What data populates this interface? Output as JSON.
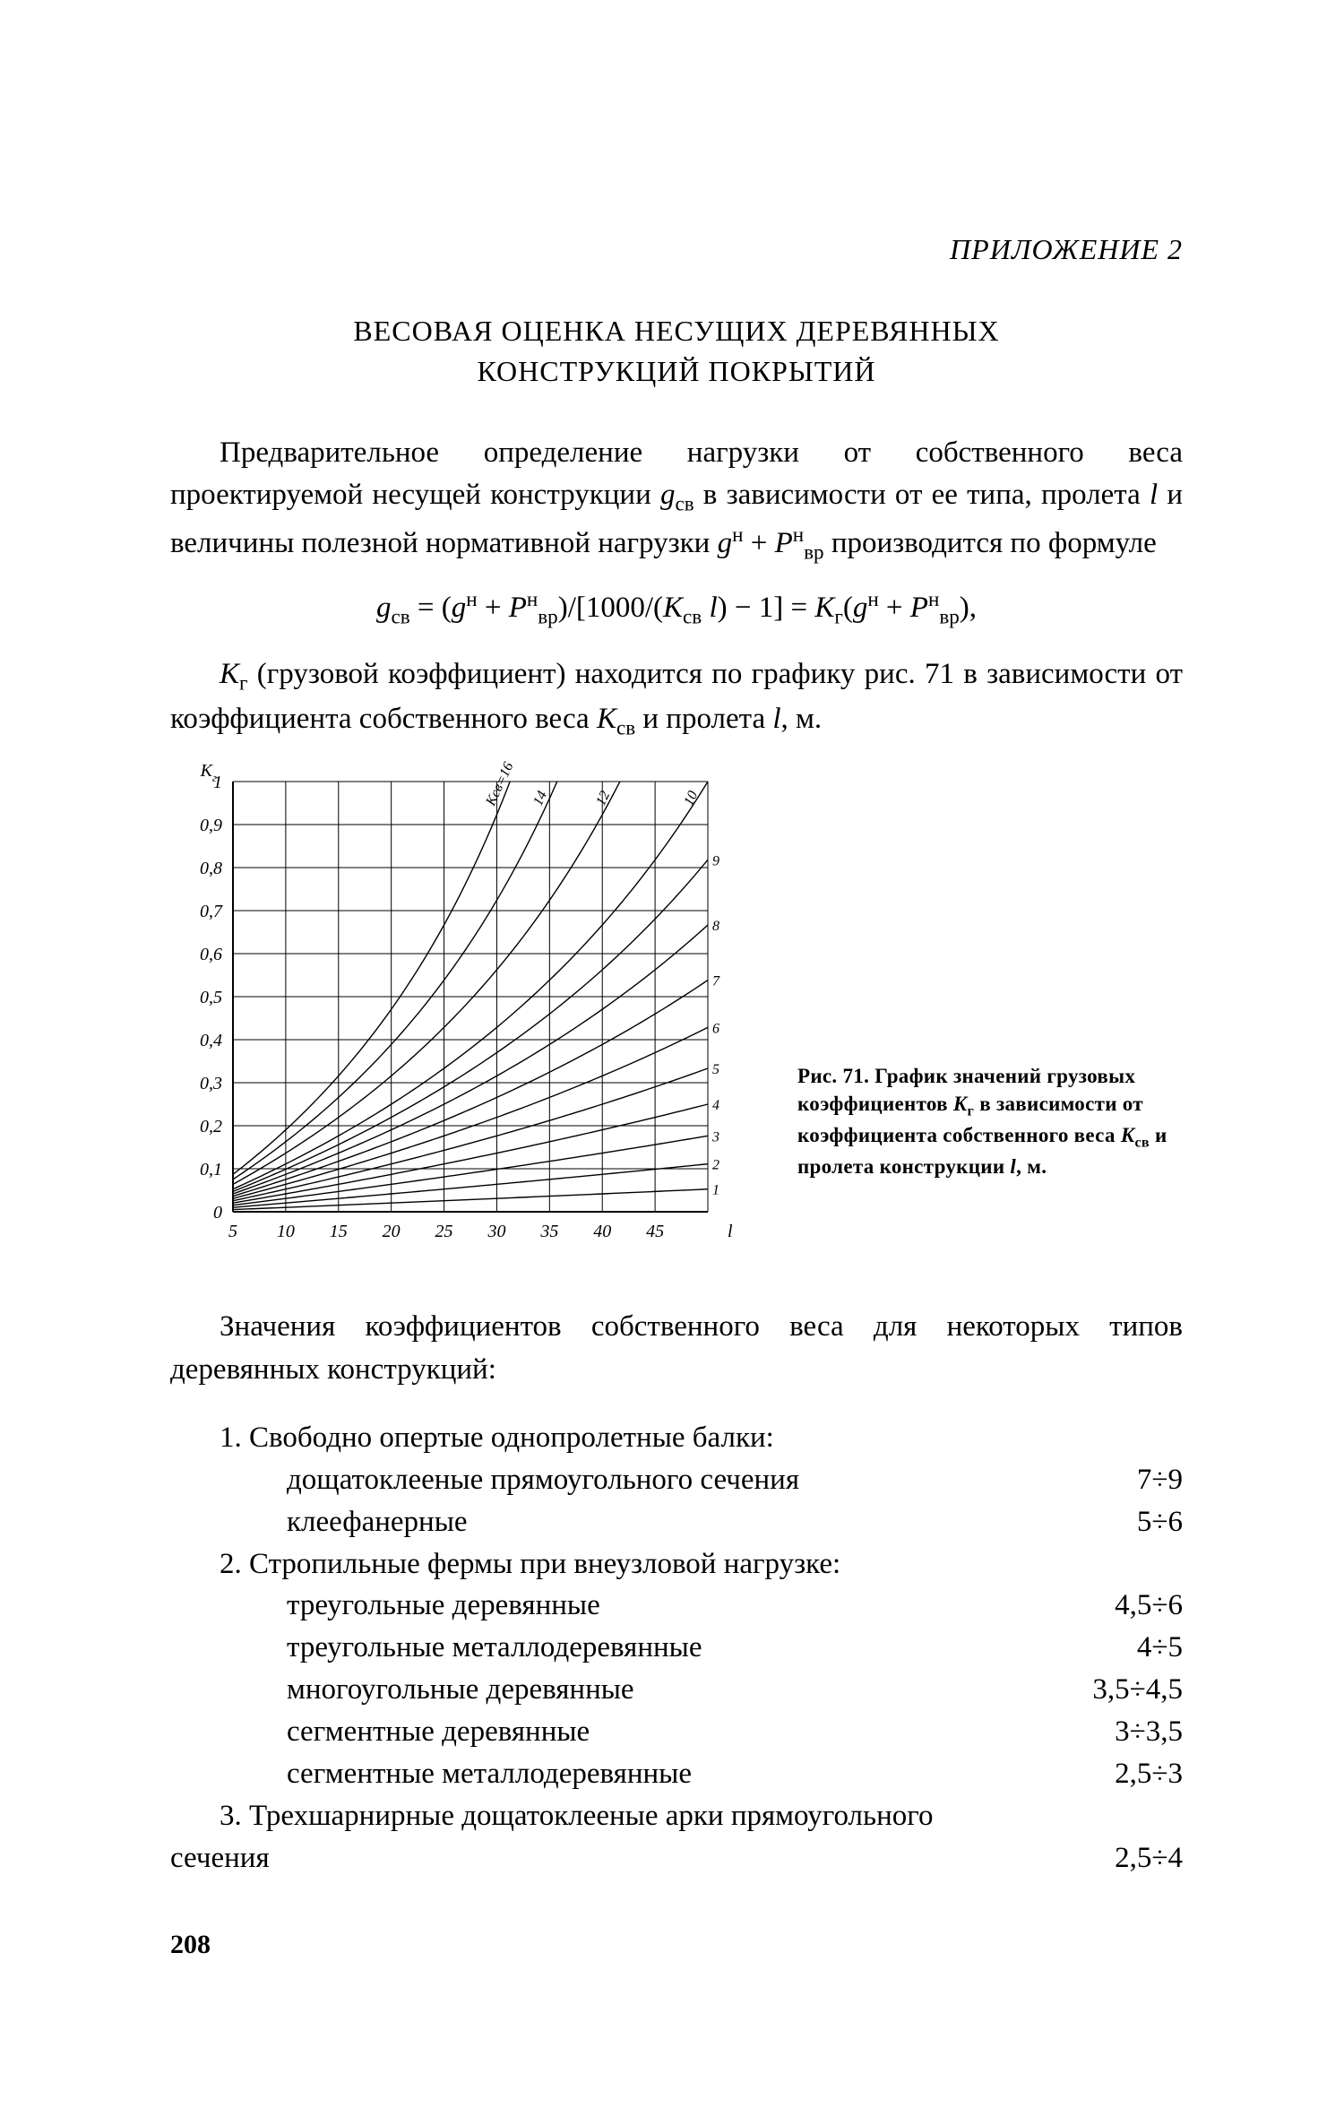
{
  "appendix": "ПРИЛОЖЕНИЕ 2",
  "title_line1": "ВЕСОВАЯ ОЦЕНКА НЕСУЩИХ ДЕРЕВЯННЫХ",
  "title_line2": "КОНСТРУКЦИЙ ПОКРЫТИЙ",
  "para1_a": "Предварительное определение нагрузки от собственного веса проектируемой несущей конструкции ",
  "para1_sym_g": "g",
  "para1_sym_g_sub": "св",
  "para1_b": " в зависимости от ее типа, пролета ",
  "para1_sym_l": "l",
  "para1_c": " и величины полезной нормативной нагрузки ",
  "para1_sym_gn": "g",
  "para1_sym_gn_sup": "н",
  "para1_plus": " + ",
  "para1_sym_P": "P",
  "para1_sym_P_sup": "н",
  "para1_sym_P_sub": "вр",
  "para1_d": " производится по формуле",
  "formula": "gсв = (gн + Pнвр)/[1000/(Kсв l) − 1] = Kг(gн + Pнвр),",
  "para2_a": "K",
  "para2_a_sub": "г",
  "para2_b": " (грузовой коэффициент) находится по графику рис. 71 в зависимости от коэффициента собственного веса ",
  "para2_K": "K",
  "para2_K_sub": "св",
  "para2_c": " и пролета ",
  "para2_l": "l",
  "para2_d": ", м.",
  "chart": {
    "type": "line",
    "x_label": "l",
    "y_label": "Kг",
    "xlim": [
      5,
      50
    ],
    "ylim": [
      0,
      1
    ],
    "xticks": [
      5,
      10,
      15,
      20,
      25,
      30,
      35,
      40,
      45
    ],
    "yticks": [
      0,
      0.1,
      0.2,
      0.3,
      0.4,
      0.5,
      0.6,
      0.7,
      0.8,
      0.9,
      1
    ],
    "ytick_labels": [
      "0",
      "0,1",
      "0,2",
      "0,3",
      "0,4",
      "0,5",
      "0,6",
      "0,7",
      "0,8",
      "0,9",
      "1"
    ],
    "background": "#ffffff",
    "grid_color": "#000000",
    "line_color": "#000000",
    "axis_stroke": 2.0,
    "grid_stroke": 1.0,
    "curve_stroke": 1.4,
    "curves": [
      {
        "label": "1",
        "x5y": 0.005,
        "end_x": 50,
        "end_y": 0.053
      },
      {
        "label": "2",
        "x5y": 0.01,
        "end_x": 50,
        "end_y": 0.111
      },
      {
        "label": "3",
        "x5y": 0.015,
        "end_x": 50,
        "end_y": 0.176
      },
      {
        "label": "4",
        "x5y": 0.02,
        "end_x": 50,
        "end_y": 0.25
      },
      {
        "label": "5",
        "x5y": 0.026,
        "end_x": 50,
        "end_y": 0.333
      },
      {
        "label": "6",
        "x5y": 0.031,
        "end_x": 50,
        "end_y": 0.429
      },
      {
        "label": "7",
        "x5y": 0.036,
        "end_x": 50,
        "end_y": 0.538
      },
      {
        "label": "8",
        "x5y": 0.042,
        "end_x": 50,
        "end_y": 0.667
      },
      {
        "label": "9",
        "x5y": 0.047,
        "end_x": 50,
        "end_y": 0.818
      },
      {
        "label": "10",
        "x5y": 0.053,
        "end_x": 50,
        "end_y": 1.0
      },
      {
        "label": "12",
        "x5y": 0.064,
        "end_x": 42,
        "end_y": 1.0
      },
      {
        "label": "14",
        "x5y": 0.075,
        "end_x": 36,
        "end_y": 1.0
      },
      {
        "label": "Kсв=16",
        "x5y": 0.087,
        "end_x": 31.5,
        "end_y": 1.0
      }
    ]
  },
  "caption_a": "Рис. 71. График значений грузовых коэффициентов ",
  "caption_K": "K",
  "caption_K_sub": "г",
  "caption_b": " в зависимости от коэффициента собственного веса ",
  "caption_K2": "K",
  "caption_K2_sub": "св",
  "caption_c": " и пролета конструкции ",
  "caption_l": "l",
  "caption_d": ", м.",
  "list_intro": "Значения коэффициентов собственного веса для некоторых типов деревянных конструкций:",
  "groups": [
    {
      "head": "1. Свободно опертые однопролетные балки:",
      "items": [
        {
          "name": "дощатоклееные прямоугольного сечения",
          "val": "7÷9"
        },
        {
          "name": "клеефанерные",
          "val": "5÷6"
        }
      ]
    },
    {
      "head": "2. Стропильные фермы при внеузловой нагрузке:",
      "items": [
        {
          "name": "треугольные деревянные",
          "val": "4,5÷6"
        },
        {
          "name": "треугольные металлодеревянные",
          "val": "4÷5"
        },
        {
          "name": "многоугольные деревянные",
          "val": "3,5÷4,5"
        },
        {
          "name": "сегментные деревянные",
          "val": "3÷3,5"
        },
        {
          "name": "сегментные металлодеревянные",
          "val": "2,5÷3"
        }
      ]
    }
  ],
  "group3_head": "3. Трехшарнирные дощатоклееные арки прямоугольного",
  "group3_wrap": "сечения",
  "group3_val": "2,5÷4",
  "page_number": "208"
}
